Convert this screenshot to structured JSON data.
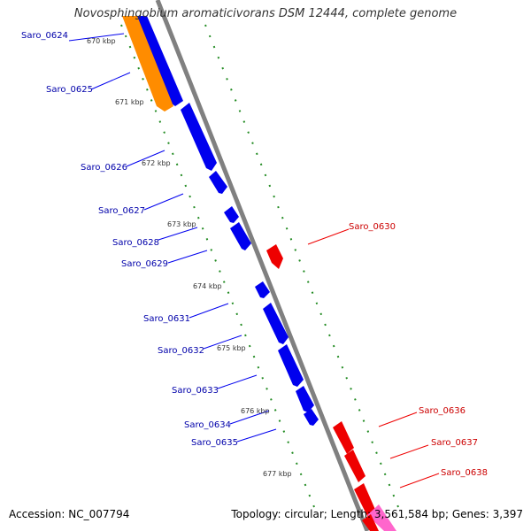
{
  "title": "Novosphingobium aromaticivorans DSM 12444, complete genome",
  "footer": {
    "accession": "Accession: NC_007794",
    "summary": "Topology: circular; Length: 3,561,584 bp; Genes: 3,397"
  },
  "colors": {
    "forward_gene": "#0000ee",
    "reverse_gene": "#ee0000",
    "highlight_gene": "#ff8c00",
    "pink_gene": "#ff66cc",
    "backbone": "#808080",
    "tick_dots": "#228b22"
  },
  "ticks": [
    "670 kbp",
    "671 kbp",
    "672 kbp",
    "673 kbp",
    "674 kbp",
    "675 kbp",
    "676 kbp",
    "677 kbp"
  ],
  "genes_forward": [
    "Saro_0624",
    "Saro_0625",
    "Saro_0626",
    "Saro_0627",
    "Saro_0628",
    "Saro_0629",
    "Saro_0631",
    "Saro_0632",
    "Saro_0633",
    "Saro_0634",
    "Saro_0635"
  ],
  "genes_reverse": [
    "Saro_0630",
    "Saro_0636",
    "Saro_0637",
    "Saro_0638"
  ]
}
